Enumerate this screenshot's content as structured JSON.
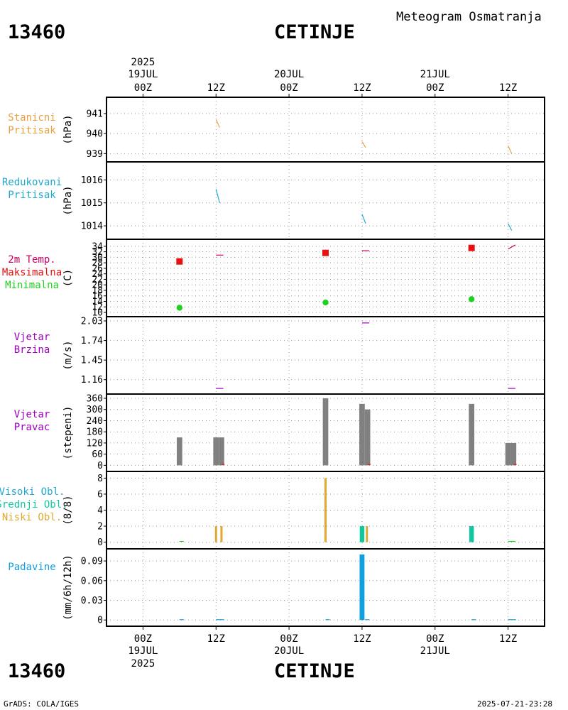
{
  "header": {
    "station_id": "13460",
    "station_name": "CETINJE",
    "chart_title": "Meteogram Osmatranja"
  },
  "footer": {
    "software": "GrADS: COLA/IGES",
    "timestamp": "2025-07-21-23:28"
  },
  "colors": {
    "orange": "#E8A040",
    "cyan": "#20A8D0",
    "magenta": "#C80060",
    "red": "#E81010",
    "green": "#20D020",
    "purple": "#A000C0",
    "gray": "#808080",
    "teal": "#10C8A0",
    "gold": "#E0A830",
    "blue": "#10A0E0"
  },
  "chart_data": {
    "type": "meteogram",
    "time_axis": {
      "range_hours": [
        -6,
        66
      ],
      "ticks": [
        {
          "hour": 0,
          "label": "00Z",
          "date": "19JUL",
          "year": "2025"
        },
        {
          "hour": 12,
          "label": "12Z",
          "date": "",
          "year": ""
        },
        {
          "hour": 24,
          "label": "00Z",
          "date": "20JUL",
          "year": ""
        },
        {
          "hour": 36,
          "label": "12Z",
          "date": "",
          "year": ""
        },
        {
          "hour": 48,
          "label": "00Z",
          "date": "21JUL",
          "year": ""
        },
        {
          "hour": 60,
          "label": "12Z",
          "date": "",
          "year": ""
        }
      ]
    },
    "panels": [
      {
        "id": "station-pressure",
        "labels": [
          "Stanicni",
          "Pritisak"
        ],
        "label_colors": [
          "#E8A040",
          "#E8A040"
        ],
        "unit": "(hPa)",
        "ylim": [
          938.8,
          941.6
        ],
        "yticks": [
          939,
          940,
          941
        ],
        "series": [
          {
            "type": "segments",
            "color": "#E8A040",
            "segments": [
              [
                [
                  12,
                  940.7
                ],
                [
                  12.6,
                  940.3
                ]
              ],
              [
                [
                  36,
                  939.6
                ],
                [
                  36.6,
                  939.3
                ]
              ],
              [
                [
                  60,
                  939.4
                ],
                [
                  60.6,
                  939.0
                ]
              ]
            ]
          }
        ]
      },
      {
        "id": "reduced-pressure",
        "labels": [
          "Redukovani",
          "Pritisak"
        ],
        "label_colors": [
          "#20A8D0",
          "#20A8D0"
        ],
        "unit": "(hPa)",
        "ylim": [
          1013.6,
          1016.6
        ],
        "yticks": [
          1014,
          1015,
          1016
        ],
        "series": [
          {
            "type": "segments",
            "color": "#20A8D0",
            "segments": [
              [
                [
                  12,
                  1015.6
                ],
                [
                  12.6,
                  1015.0
                ]
              ],
              [
                [
                  36,
                  1014.5
                ],
                [
                  36.6,
                  1014.1
                ]
              ],
              [
                [
                  60,
                  1014.1
                ],
                [
                  60.6,
                  1013.8
                ]
              ]
            ]
          }
        ]
      },
      {
        "id": "temperature",
        "labels": [
          "2m Temp.",
          "Maksimalna",
          "Minimalna"
        ],
        "label_colors": [
          "#C80060",
          "#E81010",
          "#20D020"
        ],
        "unit": "(C)",
        "ylim": [
          10,
          35
        ],
        "yticks": [
          10,
          12,
          14,
          16,
          18,
          20,
          22,
          24,
          26,
          28,
          30,
          32,
          34
        ],
        "ytick_labels": [
          "10",
          "12",
          "14",
          "16",
          "18",
          "20",
          "22",
          "24",
          "26",
          "28",
          "30",
          "32",
          "34"
        ],
        "series": [
          {
            "type": "segments",
            "color": "#C80060",
            "segments": [
              [
                [
                  12,
                  30.8
                ],
                [
                  13.2,
                  30.8
                ]
              ],
              [
                [
                  36,
                  32.4
                ],
                [
                  37.2,
                  32.4
                ]
              ],
              [
                [
                  60,
                  33.0
                ],
                [
                  61.2,
                  34.5
                ]
              ]
            ]
          },
          {
            "type": "squares",
            "color": "#E81010",
            "points": [
              [
                6,
                28.5
              ],
              [
                30,
                31.6
              ],
              [
                54,
                33.4
              ]
            ]
          },
          {
            "type": "circles",
            "color": "#20D020",
            "points": [
              [
                6,
                11.7
              ],
              [
                30,
                13.6
              ],
              [
                54,
                14.8
              ]
            ]
          }
        ]
      },
      {
        "id": "wind-speed",
        "labels": [
          "Vjetar",
          "Brzina"
        ],
        "label_colors": [
          "#A000C0",
          "#A000C0"
        ],
        "unit": "(m/s)",
        "ylim": [
          1.01,
          2.03
        ],
        "yticks": [
          1.16,
          1.45,
          1.74,
          2.03
        ],
        "series": [
          {
            "type": "segments",
            "color": "#A000C0",
            "segments": [
              [
                [
                  12,
                  1.03
                ],
                [
                  13.2,
                  1.03
                ]
              ],
              [
                [
                  36,
                  2.0
                ],
                [
                  37.2,
                  2.0
                ]
              ],
              [
                [
                  60,
                  1.03
                ],
                [
                  61.2,
                  1.03
                ]
              ]
            ]
          }
        ]
      },
      {
        "id": "wind-direction",
        "labels": [
          "Vjetar",
          "Pravac"
        ],
        "label_colors": [
          "#A000C0",
          "#A000C0"
        ],
        "unit": "(stepeni)",
        "ylim": [
          -10,
          360
        ],
        "yticks": [
          0,
          60,
          120,
          180,
          240,
          300,
          360
        ],
        "ytick_labels": [
          "0",
          "60",
          "120",
          "180",
          "240",
          "300",
          "360"
        ],
        "series": [
          {
            "type": "bars",
            "color": "#808080",
            "width_h": 0.9,
            "bars": [
              [
                6,
                150
              ],
              [
                12,
                150
              ],
              [
                12.9,
                150
              ],
              [
                30,
                360
              ],
              [
                36,
                330
              ],
              [
                36.9,
                300
              ],
              [
                54,
                330
              ],
              [
                60,
                120
              ],
              [
                60.9,
                120
              ]
            ]
          },
          {
            "type": "segments",
            "color": "#E81010",
            "segments": [
              [
                [
                  12.9,
                  5
                ],
                [
                  13.4,
                  5
                ]
              ],
              [
                [
                  36.9,
                  5
                ],
                [
                  37.4,
                  5
                ]
              ],
              [
                [
                  60.9,
                  5
                ],
                [
                  61.4,
                  5
                ]
              ]
            ]
          }
        ]
      },
      {
        "id": "cloud-cover",
        "labels": [
          "Visoki Obl.",
          "Srednji Obl.",
          "Niski Obl."
        ],
        "label_colors": [
          "#20A8D0",
          "#10C8A0",
          "#E0A830"
        ],
        "unit": "(8/8)",
        "ylim": [
          -0.3,
          8.3
        ],
        "yticks": [
          0,
          2,
          4,
          6,
          8
        ],
        "series": [
          {
            "type": "bars",
            "color": "#E0A830",
            "width_h": 0.35,
            "bars": [
              [
                12,
                2
              ],
              [
                12.9,
                2
              ],
              [
                30,
                8
              ],
              [
                36.8,
                2
              ]
            ]
          },
          {
            "type": "bars",
            "color": "#10C8A0",
            "width_h": 0.75,
            "bars": [
              [
                36,
                2
              ],
              [
                54,
                2
              ]
            ]
          },
          {
            "type": "segments",
            "color": "#20D020",
            "segments": [
              [
                [
                  6,
                  0.1
                ],
                [
                  6.7,
                  0.1
                ]
              ],
              [
                [
                  60,
                  0.1
                ],
                [
                  61.2,
                  0.1
                ]
              ]
            ]
          }
        ]
      },
      {
        "id": "precipitation",
        "labels": [
          "Padavine"
        ],
        "label_colors": [
          "#10A0E0"
        ],
        "unit": "(mm/6h/12h)",
        "ylim": [
          -0.003,
          0.102
        ],
        "yticks": [
          0,
          0.03,
          0.06,
          0.09
        ],
        "ytick_labels": [
          "0",
          "0.03",
          "0.06",
          "0.09"
        ],
        "series": [
          {
            "type": "bars",
            "color": "#10A0E0",
            "width_h": 0.8,
            "bars": [
              [
                36,
                0.1
              ]
            ]
          },
          {
            "type": "segments",
            "color": "#10A0E0",
            "segments": [
              [
                [
                  6,
                  0.0005
                ],
                [
                  6.7,
                  0.0005
                ]
              ],
              [
                [
                  12,
                  0.0005
                ],
                [
                  13.3,
                  0.0005
                ]
              ],
              [
                [
                  30,
                  0.0005
                ],
                [
                  30.7,
                  0.0005
                ]
              ],
              [
                [
                  36.5,
                  0.0005
                ],
                [
                  37.2,
                  0.0005
                ]
              ],
              [
                [
                  54,
                  0.0005
                ],
                [
                  54.7,
                  0.0005
                ]
              ],
              [
                [
                  60,
                  0.0005
                ],
                [
                  61.3,
                  0.0005
                ]
              ]
            ]
          }
        ]
      }
    ]
  }
}
